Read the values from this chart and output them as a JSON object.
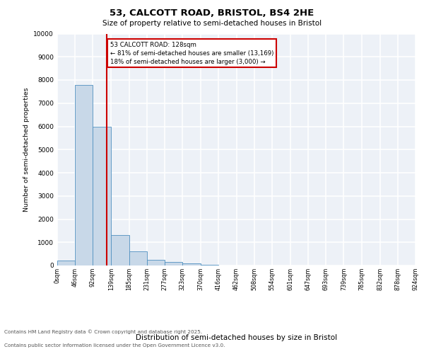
{
  "title_line1": "53, CALCOTT ROAD, BRISTOL, BS4 2HE",
  "title_line2": "Size of property relative to semi-detached houses in Bristol",
  "xlabel": "Distribution of semi-detached houses by size in Bristol",
  "ylabel": "Number of semi-detached properties",
  "bin_edges": [
    0,
    46,
    92,
    139,
    185,
    231,
    277,
    323,
    370,
    416,
    462,
    508,
    554,
    601,
    647,
    693,
    739,
    785,
    832,
    878,
    924
  ],
  "bin_heights": [
    200,
    7800,
    6000,
    1300,
    600,
    250,
    150,
    80,
    30,
    15,
    8,
    4,
    2,
    1,
    1,
    0,
    0,
    0,
    0,
    0
  ],
  "bar_color": "#c8d8e8",
  "bar_edge_color": "#5090c0",
  "property_size": 128,
  "vline_color": "#cc0000",
  "annotation_text": "53 CALCOTT ROAD: 128sqm\n← 81% of semi-detached houses are smaller (13,169)\n18% of semi-detached houses are larger (3,000) →",
  "annotation_box_edgecolor": "#cc0000",
  "ylim": [
    0,
    10000
  ],
  "yticks": [
    0,
    1000,
    2000,
    3000,
    4000,
    5000,
    6000,
    7000,
    8000,
    9000,
    10000
  ],
  "background_color": "#edf1f7",
  "grid_color": "#ffffff",
  "footer_line1": "Contains HM Land Registry data © Crown copyright and database right 2025.",
  "footer_line2": "Contains public sector information licensed under the Open Government Licence v3.0.",
  "tick_labels": [
    "0sqm",
    "46sqm",
    "92sqm",
    "139sqm",
    "185sqm",
    "231sqm",
    "277sqm",
    "323sqm",
    "370sqm",
    "416sqm",
    "462sqm",
    "508sqm",
    "554sqm",
    "601sqm",
    "647sqm",
    "693sqm",
    "739sqm",
    "785sqm",
    "832sqm",
    "878sqm",
    "924sqm"
  ]
}
